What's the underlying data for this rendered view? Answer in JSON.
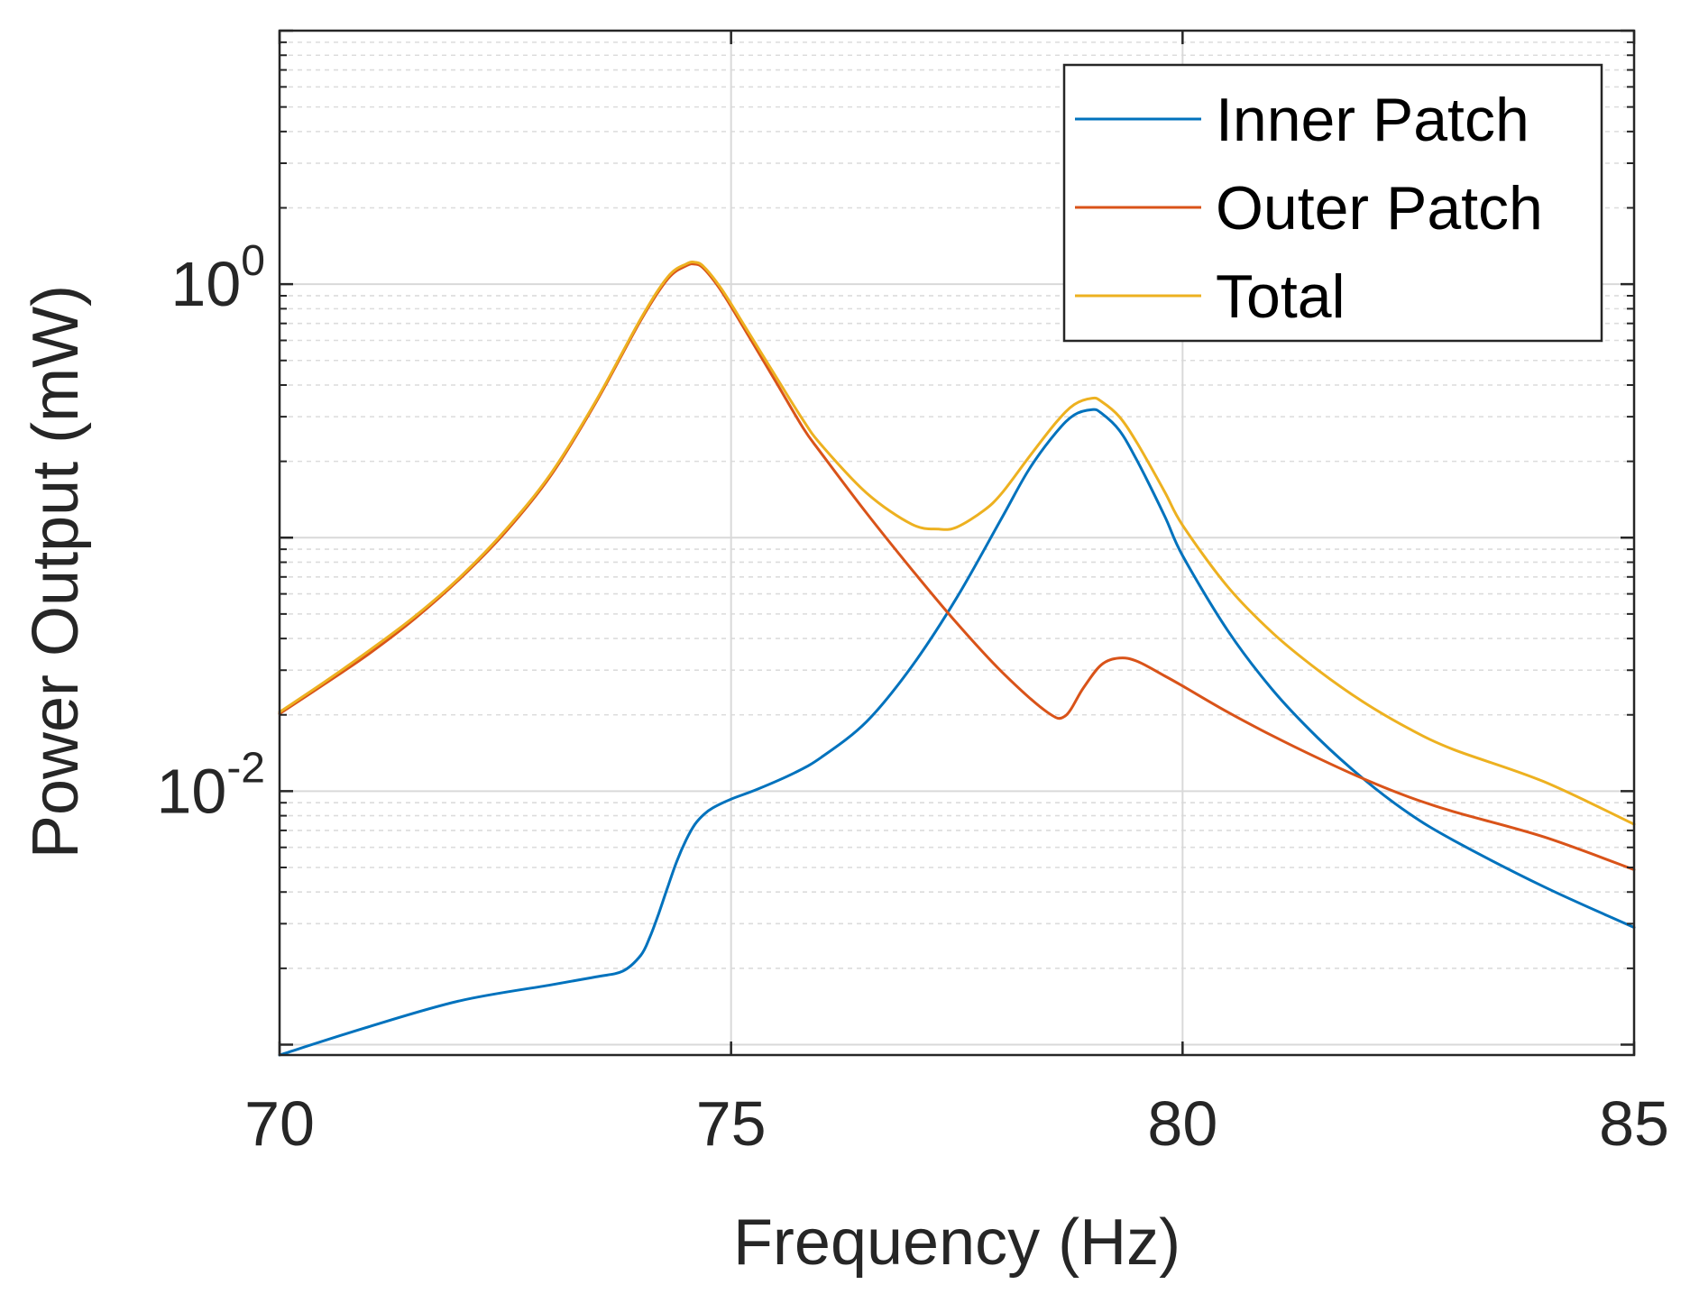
{
  "chart_data": {
    "type": "line",
    "title": "",
    "xlabel": "Frequency (Hz)",
    "ylabel": "Power Output (mW)",
    "yscale": "log",
    "xlim": [
      70,
      85
    ],
    "ylim": [
      0.00091,
      10
    ],
    "grid": true,
    "minor_grid": true,
    "xticks": [
      70,
      75,
      80,
      85
    ],
    "xtick_labels": [
      "70",
      "75",
      "80",
      "85"
    ],
    "yticks": [
      {
        "value": 1,
        "base": "10",
        "exp": "0"
      },
      {
        "value": 0.01,
        "base": "10",
        "exp": "-2"
      }
    ],
    "legend": {
      "position": "top-right"
    },
    "series": [
      {
        "name": "Inner Patch",
        "color": "#0072BD",
        "x": [
          70,
          71,
          72,
          73,
          73.5,
          73.8,
          74.0,
          74.1,
          74.2,
          74.3,
          74.4,
          74.5,
          74.6,
          74.7,
          74.8,
          75.0,
          75.3,
          75.7,
          76.0,
          76.5,
          77.0,
          77.5,
          78.0,
          78.3,
          78.6,
          78.8,
          79.0,
          79.1,
          79.3,
          79.5,
          79.8,
          80.0,
          80.5,
          81.0,
          81.5,
          82.0,
          82.5,
          83.0,
          84.0,
          85.0
        ],
        "y": [
          0.00091,
          0.00118,
          0.00149,
          0.00172,
          0.00185,
          0.00195,
          0.00225,
          0.00265,
          0.0033,
          0.0042,
          0.0053,
          0.0064,
          0.0074,
          0.0081,
          0.0086,
          0.0093,
          0.0102,
          0.0118,
          0.0136,
          0.0188,
          0.031,
          0.058,
          0.12,
          0.186,
          0.26,
          0.305,
          0.32,
          0.31,
          0.265,
          0.2,
          0.122,
          0.085,
          0.043,
          0.025,
          0.0162,
          0.0112,
          0.0082,
          0.0064,
          0.0042,
          0.0029
        ]
      },
      {
        "name": "Outer Patch",
        "color": "#D95319",
        "x": [
          70,
          70.5,
          71,
          71.5,
          72,
          72.5,
          73,
          73.5,
          74.0,
          74.3,
          74.5,
          74.6,
          74.7,
          74.9,
          75.2,
          75.5,
          75.8,
          76.0,
          76.5,
          77.0,
          77.5,
          78.0,
          78.5,
          78.7,
          78.9,
          79.1,
          79.3,
          79.5,
          79.8,
          80.0,
          80.5,
          81.0,
          81.5,
          82.0,
          82.5,
          83.0,
          84.0,
          85.0
        ],
        "y": [
          0.0202,
          0.0265,
          0.035,
          0.048,
          0.069,
          0.105,
          0.175,
          0.34,
          0.72,
          1.05,
          1.18,
          1.2,
          1.15,
          0.93,
          0.62,
          0.41,
          0.27,
          0.215,
          0.125,
          0.075,
          0.046,
          0.0295,
          0.0205,
          0.0198,
          0.0255,
          0.0315,
          0.0335,
          0.0325,
          0.0285,
          0.026,
          0.0205,
          0.0165,
          0.0135,
          0.0112,
          0.0095,
          0.0083,
          0.0066,
          0.0049
        ]
      },
      {
        "name": "Total",
        "color": "#EDB120",
        "x": [
          70,
          70.5,
          71,
          71.5,
          72,
          72.5,
          73,
          73.5,
          74.0,
          74.3,
          74.5,
          74.6,
          74.7,
          74.9,
          75.2,
          75.5,
          75.8,
          76.0,
          76.5,
          77.0,
          77.3,
          77.5,
          77.8,
          78.0,
          78.3,
          78.6,
          78.8,
          79.0,
          79.1,
          79.3,
          79.5,
          79.8,
          80.0,
          80.5,
          81.0,
          81.5,
          82.0,
          82.5,
          83.0,
          84.0,
          85.0
        ],
        "y": [
          0.0205,
          0.027,
          0.036,
          0.049,
          0.07,
          0.107,
          0.178,
          0.345,
          0.73,
          1.07,
          1.2,
          1.22,
          1.17,
          0.95,
          0.64,
          0.43,
          0.29,
          0.232,
          0.15,
          0.113,
          0.108,
          0.11,
          0.128,
          0.15,
          0.208,
          0.285,
          0.335,
          0.355,
          0.345,
          0.3,
          0.235,
          0.152,
          0.112,
          0.064,
          0.042,
          0.03,
          0.0225,
          0.0177,
          0.0146,
          0.0109,
          0.0074
        ]
      }
    ]
  }
}
